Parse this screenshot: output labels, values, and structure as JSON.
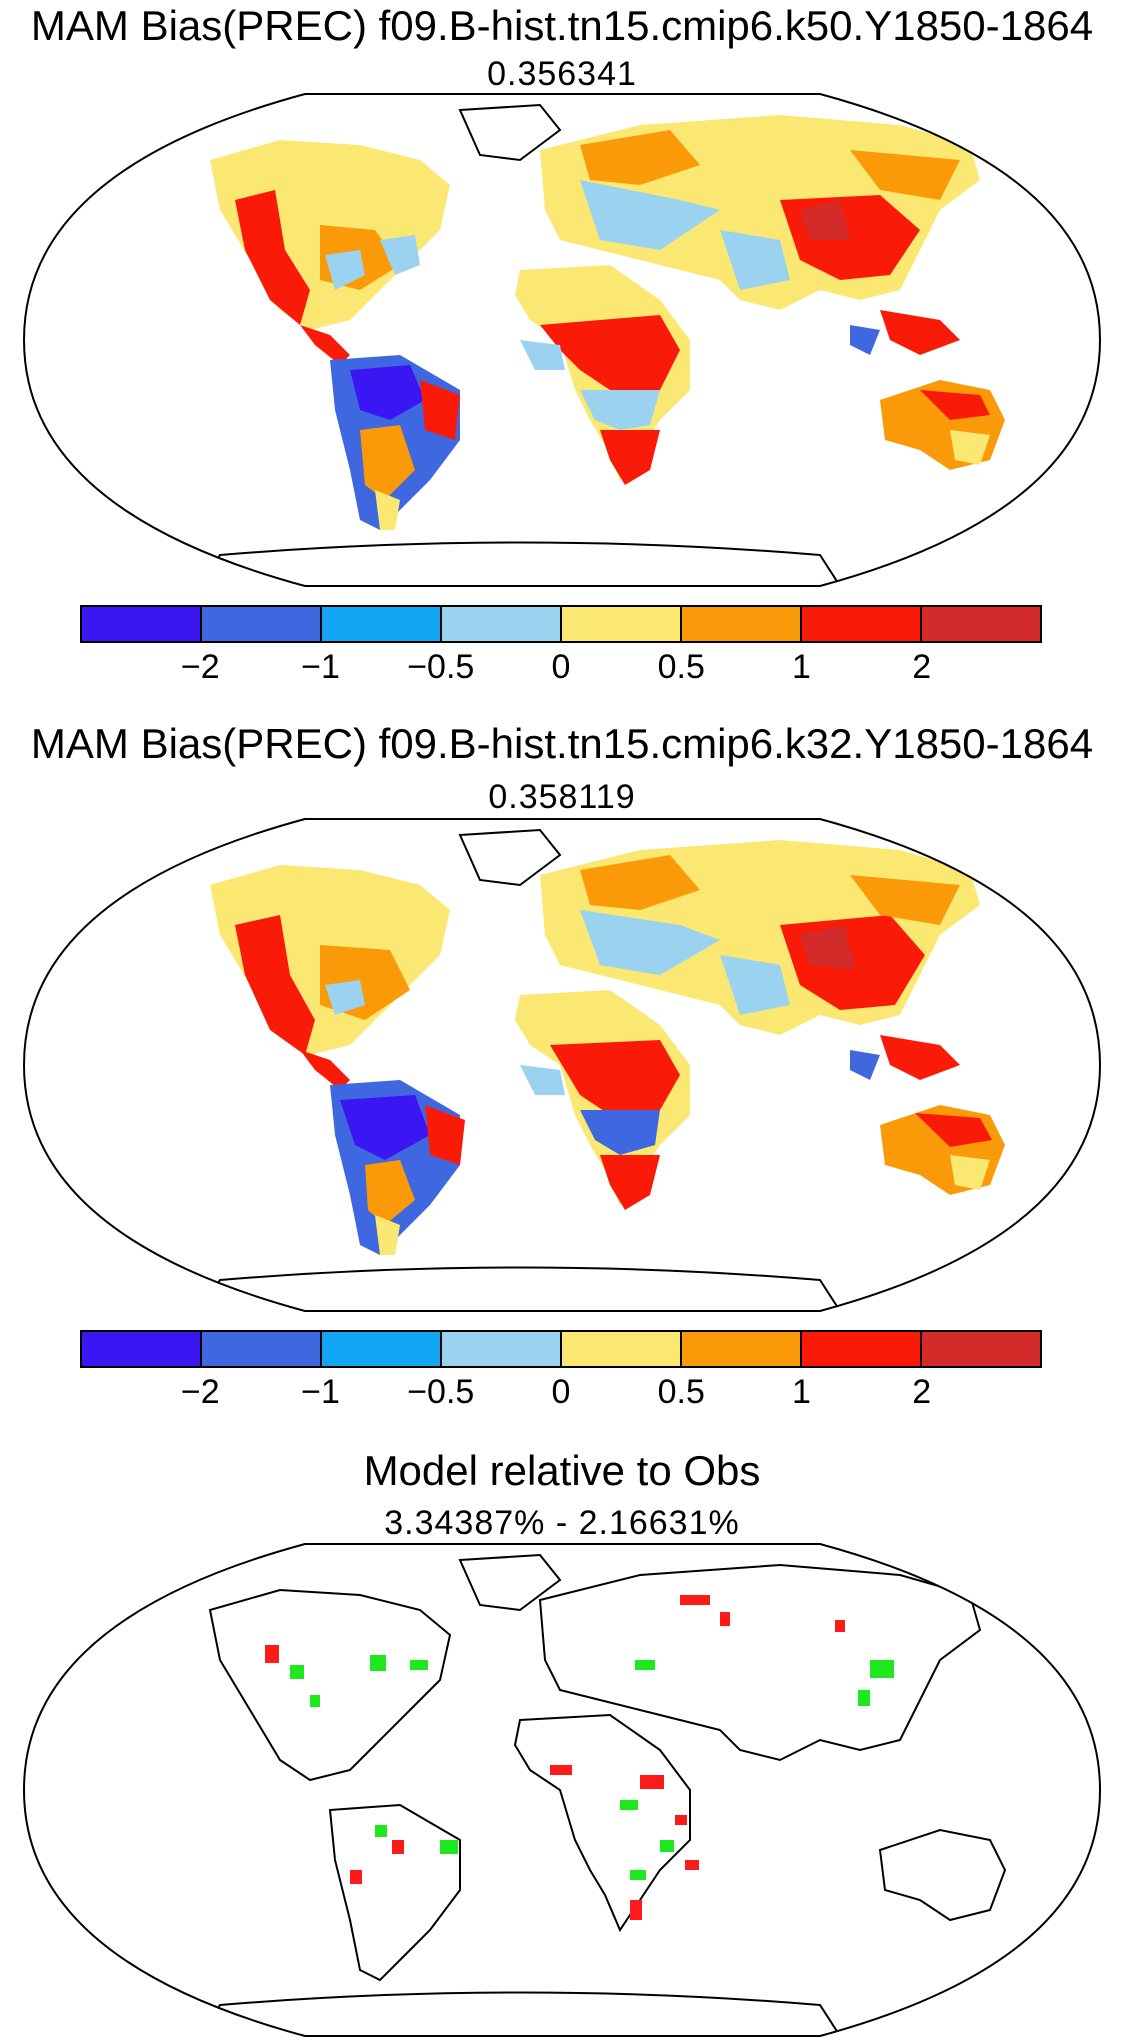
{
  "panels": [
    {
      "title": "MAM Bias(PREC) f09.B-hist.tn15.cmip6.k50.Y1850-1864",
      "subtitle": "0.356341"
    },
    {
      "title": "MAM Bias(PREC) f09.B-hist.tn15.cmip6.k32.Y1850-1864",
      "subtitle": "0.358119"
    },
    {
      "title": "Model relative to Obs",
      "subtitle": "3.34387% - 2.16631%"
    }
  ],
  "colorbar": {
    "colors": [
      "#3a16f2",
      "#3f67e0",
      "#12a6f4",
      "#9ad2f0",
      "#fbe873",
      "#fb9a08",
      "#f91a08",
      "#d32a2a"
    ],
    "tick_labels": [
      "−2",
      "−1",
      "−0.5",
      "0",
      "0.5",
      "1",
      "2"
    ]
  },
  "relative_colors": {
    "worse": "#ff1a1a",
    "better": "#1ee81e"
  }
}
